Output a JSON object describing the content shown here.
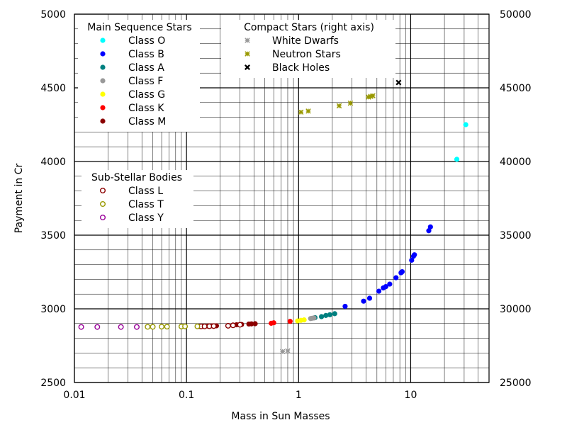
{
  "chart_data": {
    "type": "scatter",
    "title": "",
    "xlabel": "Mass in Sun Masses",
    "ylabel": "Payment in Cr",
    "x_scale": "log",
    "xlim": [
      0.01,
      50
    ],
    "ylim": [
      2500,
      5000
    ],
    "y2lim": [
      25000,
      50000
    ],
    "grid": true,
    "x_ticks": [
      "0.01",
      "0.1",
      "1",
      "10"
    ],
    "y_ticks": [
      "2500",
      "3000",
      "3500",
      "4000",
      "4500",
      "5000"
    ],
    "y2_ticks": [
      "25000",
      "30000",
      "35000",
      "40000",
      "45000",
      "50000"
    ],
    "legend_groups": [
      {
        "title": "Main Sequence Stars",
        "placement": "top-left",
        "series": [
          "O",
          "B",
          "A",
          "F",
          "G",
          "K",
          "M"
        ]
      },
      {
        "title": "Compact Stars (right axis)",
        "placement": "top-center",
        "series": [
          "WD",
          "NS",
          "BH"
        ]
      },
      {
        "title": "Sub-Stellar Bodies",
        "placement": "upper-left",
        "series": [
          "L",
          "T",
          "Y"
        ]
      }
    ],
    "series": [
      {
        "id": "O",
        "name": "Class O",
        "color": "#00ffff",
        "marker": "dot",
        "axis": "left",
        "points": [
          [
            25.8,
            4015
          ],
          [
            31.0,
            4250
          ]
        ]
      },
      {
        "id": "B",
        "name": "Class B",
        "color": "#0000ff",
        "marker": "dot",
        "axis": "left",
        "points": [
          [
            2.6,
            3017
          ],
          [
            3.8,
            3052
          ],
          [
            4.3,
            3072
          ],
          [
            5.2,
            3120
          ],
          [
            5.7,
            3142
          ],
          [
            6.0,
            3151
          ],
          [
            6.5,
            3168
          ],
          [
            7.4,
            3211
          ],
          [
            8.2,
            3245
          ],
          [
            8.4,
            3252
          ],
          [
            10.2,
            3330
          ],
          [
            10.6,
            3357
          ],
          [
            10.8,
            3367
          ],
          [
            14.5,
            3530
          ],
          [
            15.0,
            3556
          ]
        ]
      },
      {
        "id": "A",
        "name": "Class A",
        "color": "#008080",
        "marker": "dot",
        "axis": "left",
        "points": [
          [
            1.4,
            2940
          ],
          [
            1.6,
            2947
          ],
          [
            1.75,
            2955
          ],
          [
            1.9,
            2960
          ],
          [
            2.1,
            2967
          ]
        ]
      },
      {
        "id": "F",
        "name": "Class F",
        "color": "#999999",
        "marker": "dot",
        "axis": "left",
        "points": [
          [
            1.28,
            2934
          ],
          [
            1.32,
            2936
          ],
          [
            1.37,
            2938
          ]
        ]
      },
      {
        "id": "G",
        "name": "Class G",
        "color": "#ffff00",
        "marker": "dot",
        "axis": "left",
        "points": [
          [
            0.98,
            2918
          ],
          [
            1.05,
            2922
          ],
          [
            1.12,
            2925
          ]
        ]
      },
      {
        "id": "K",
        "name": "Class K",
        "color": "#ff0000",
        "marker": "dot",
        "axis": "left",
        "points": [
          [
            0.57,
            2902
          ],
          [
            0.6,
            2905
          ],
          [
            0.84,
            2915
          ]
        ]
      },
      {
        "id": "M",
        "name": "Class M",
        "color": "#8b0000",
        "marker": "dot",
        "axis": "left",
        "points": [
          [
            0.13,
            2881
          ],
          [
            0.14,
            2882
          ],
          [
            0.155,
            2883
          ],
          [
            0.17,
            2884
          ],
          [
            0.185,
            2885
          ],
          [
            0.28,
            2892
          ],
          [
            0.31,
            2894
          ],
          [
            0.36,
            2897
          ],
          [
            0.38,
            2898
          ],
          [
            0.41,
            2899
          ]
        ]
      },
      {
        "id": "L",
        "name": "Class L",
        "color": "#8b0000",
        "marker": "ring",
        "axis": "left",
        "points": [
          [
            0.135,
            2881
          ],
          [
            0.145,
            2881
          ],
          [
            0.16,
            2882
          ],
          [
            0.175,
            2883
          ],
          [
            0.235,
            2885
          ],
          [
            0.26,
            2888
          ],
          [
            0.3,
            2892
          ]
        ]
      },
      {
        "id": "T",
        "name": "Class T",
        "color": "#999900",
        "marker": "ring",
        "axis": "left",
        "points": [
          [
            0.045,
            2878
          ],
          [
            0.05,
            2878
          ],
          [
            0.06,
            2879
          ],
          [
            0.067,
            2879
          ],
          [
            0.09,
            2880
          ],
          [
            0.097,
            2881
          ],
          [
            0.125,
            2881
          ]
        ]
      },
      {
        "id": "Y",
        "name": "Class Y",
        "color": "#990099",
        "marker": "ring",
        "axis": "left",
        "points": [
          [
            0.0115,
            2877
          ],
          [
            0.016,
            2877
          ],
          [
            0.026,
            2877
          ],
          [
            0.036,
            2877
          ]
        ]
      },
      {
        "id": "WD",
        "name": "White Dwarfs",
        "color": "#999999",
        "marker": "star",
        "axis": "right",
        "points": [
          [
            0.72,
            27100
          ],
          [
            0.8,
            27150
          ]
        ]
      },
      {
        "id": "NS",
        "name": "Neutron Stars",
        "color": "#999900",
        "marker": "star",
        "axis": "right",
        "points": [
          [
            1.05,
            43350
          ],
          [
            1.22,
            43420
          ],
          [
            2.3,
            43780
          ],
          [
            2.9,
            43960
          ],
          [
            4.2,
            44370
          ],
          [
            4.4,
            44420
          ],
          [
            4.6,
            44460
          ]
        ]
      },
      {
        "id": "BH",
        "name": "Black Holes",
        "color": "#000000",
        "marker": "cross",
        "axis": "right",
        "points": [
          [
            7.8,
            45360
          ]
        ]
      }
    ]
  }
}
